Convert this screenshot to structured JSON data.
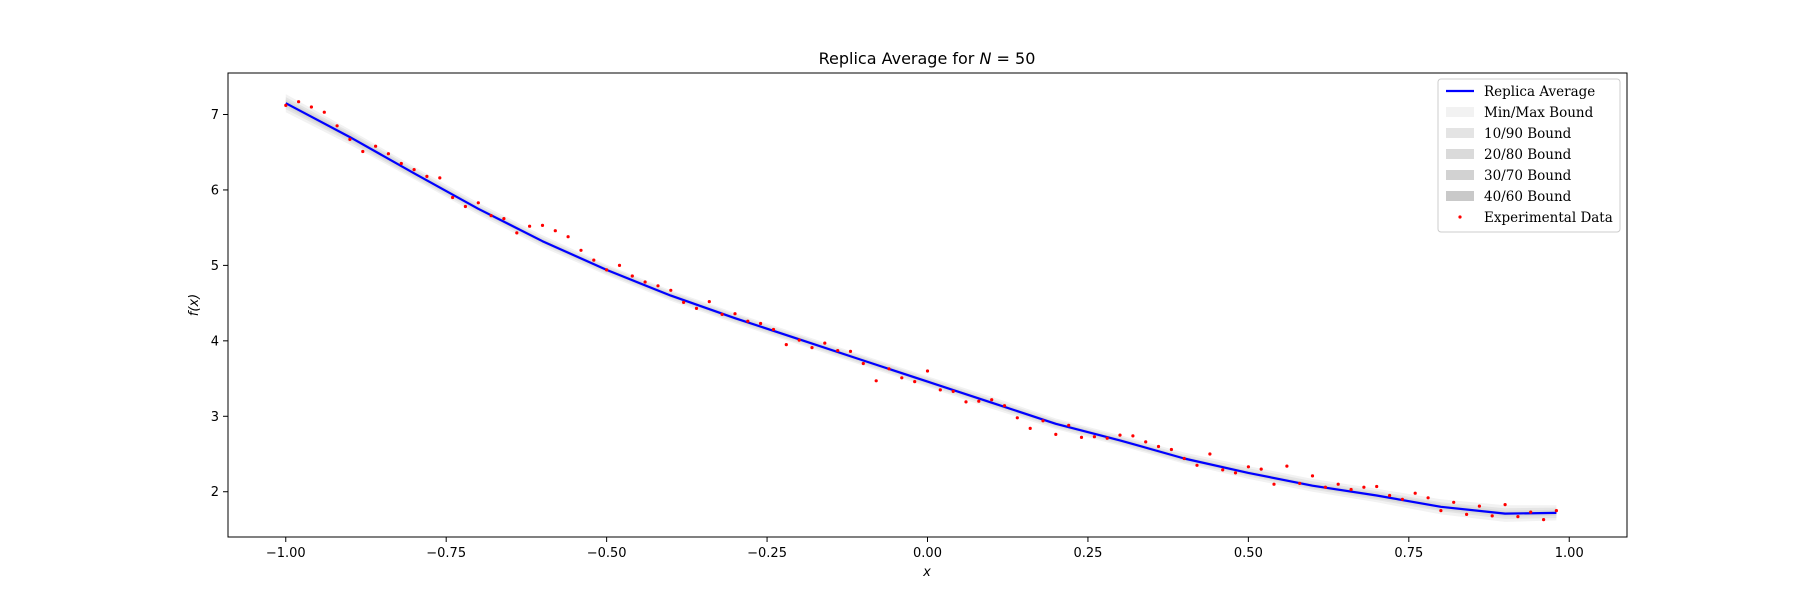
{
  "chart_data": {
    "type": "line",
    "title": "Replica Average for N = 50",
    "title_parts": {
      "prefix": "Replica Average for ",
      "var": "N",
      "suffix": " = 50"
    },
    "xlabel": "x",
    "ylabel": "f(x)",
    "xlim": [
      -1.09,
      1.09
    ],
    "ylim": [
      1.4,
      7.55
    ],
    "x_ticks": [
      -1.0,
      -0.75,
      -0.5,
      -0.25,
      0.0,
      0.25,
      0.5,
      0.75,
      1.0
    ],
    "x_tick_labels": [
      "−1.00",
      "−0.75",
      "−0.50",
      "−0.25",
      "0.00",
      "0.25",
      "0.50",
      "0.75",
      "1.00"
    ],
    "y_ticks": [
      2,
      3,
      4,
      5,
      6,
      7
    ],
    "y_tick_labels": [
      "2",
      "3",
      "4",
      "5",
      "6",
      "7"
    ],
    "grid": false,
    "legend_position": "top-right",
    "legend": [
      {
        "label": "Replica Average",
        "kind": "line"
      },
      {
        "label": "Min/Max Bound",
        "kind": "band"
      },
      {
        "label": "10/90 Bound",
        "kind": "band"
      },
      {
        "label": "20/80 Bound",
        "kind": "band"
      },
      {
        "label": "30/70 Bound",
        "kind": "band"
      },
      {
        "label": "40/60 Bound",
        "kind": "band"
      },
      {
        "label": "Experimental Data",
        "kind": "point"
      }
    ],
    "colors": {
      "line": "#0000ff",
      "points": "#ff0000",
      "band_minmax": "#f2f2f2",
      "band_10_90": "#e4e4e4",
      "band_20_80": "#dadada",
      "band_30_70": "#d2d2d2",
      "band_40_60": "#c9c9c9"
    },
    "series": [
      {
        "name": "Replica Average",
        "x": [
          -1.0,
          -0.9,
          -0.8,
          -0.7,
          -0.6,
          -0.5,
          -0.4,
          -0.3,
          -0.2,
          -0.1,
          0.0,
          0.1,
          0.2,
          0.3,
          0.4,
          0.5,
          0.6,
          0.7,
          0.8,
          0.9,
          0.98
        ],
        "y": [
          7.15,
          6.7,
          6.22,
          5.75,
          5.32,
          4.94,
          4.6,
          4.3,
          4.02,
          3.74,
          3.46,
          3.18,
          2.9,
          2.68,
          2.44,
          2.25,
          2.08,
          1.95,
          1.8,
          1.71,
          1.72
        ],
        "bands": {
          "minmax": {
            "lower": [
              7.03,
              6.6,
              6.14,
              5.67,
              5.24,
              4.87,
              4.53,
              4.23,
              3.95,
              3.67,
              3.39,
              3.1,
              2.83,
              2.61,
              2.37,
              2.17,
              2.0,
              1.86,
              1.7,
              1.6,
              1.62
            ],
            "upper": [
              7.27,
              6.8,
              6.31,
              5.83,
              5.4,
              5.01,
              4.67,
              4.37,
              4.09,
              3.81,
              3.53,
              3.26,
              2.97,
              2.75,
              2.52,
              2.34,
              2.17,
              2.04,
              1.9,
              1.82,
              1.82
            ]
          },
          "p10_90": {
            "lower": [
              7.07,
              6.63,
              6.16,
              5.7,
              5.27,
              4.89,
              4.55,
              4.25,
              3.97,
              3.69,
              3.41,
              3.13,
              2.85,
              2.63,
              2.39,
              2.2,
              2.03,
              1.89,
              1.74,
              1.64,
              1.65
            ],
            "upper": [
              7.23,
              6.77,
              6.28,
              5.8,
              5.37,
              4.99,
              4.65,
              4.35,
              4.07,
              3.79,
              3.51,
              3.23,
              2.95,
              2.73,
              2.49,
              2.31,
              2.14,
              2.01,
              1.86,
              1.78,
              1.79
            ]
          },
          "p20_80": {
            "lower": [
              7.1,
              6.65,
              6.18,
              5.72,
              5.29,
              4.91,
              4.57,
              4.27,
              3.99,
              3.71,
              3.43,
              3.15,
              2.87,
              2.65,
              2.41,
              2.22,
              2.05,
              1.91,
              1.76,
              1.67,
              1.68
            ],
            "upper": [
              7.2,
              6.75,
              6.26,
              5.78,
              5.35,
              4.97,
              4.63,
              4.33,
              4.05,
              3.77,
              3.49,
              3.21,
              2.93,
              2.71,
              2.47,
              2.28,
              2.11,
              1.99,
              1.84,
              1.75,
              1.76
            ]
          },
          "p30_70": {
            "lower": [
              7.12,
              6.67,
              6.2,
              5.73,
              5.3,
              4.92,
              4.58,
              4.28,
              4.0,
              3.72,
              3.44,
              3.16,
              2.88,
              2.66,
              2.42,
              2.23,
              2.06,
              1.93,
              1.78,
              1.69,
              1.7
            ],
            "upper": [
              7.18,
              6.73,
              6.24,
              5.77,
              5.34,
              4.96,
              4.62,
              4.32,
              4.04,
              3.76,
              3.48,
              3.2,
              2.92,
              2.7,
              2.46,
              2.27,
              2.1,
              1.97,
              1.82,
              1.73,
              1.74
            ]
          },
          "p40_60": {
            "lower": [
              7.14,
              6.69,
              6.21,
              5.74,
              5.31,
              4.93,
              4.59,
              4.29,
              4.01,
              3.73,
              3.45,
              3.17,
              2.89,
              2.67,
              2.43,
              2.24,
              2.07,
              1.94,
              1.79,
              1.7,
              1.71
            ],
            "upper": [
              7.16,
              6.71,
              6.23,
              5.76,
              5.33,
              4.95,
              4.61,
              4.31,
              4.03,
              3.75,
              3.47,
              3.19,
              2.91,
              2.69,
              2.45,
              2.26,
              2.09,
              1.96,
              1.81,
              1.72,
              1.73
            ]
          }
        }
      },
      {
        "name": "Experimental Data",
        "type": "scatter",
        "x": [
          -1.0,
          -0.98,
          -0.96,
          -0.94,
          -0.92,
          -0.9,
          -0.88,
          -0.86,
          -0.84,
          -0.82,
          -0.8,
          -0.78,
          -0.76,
          -0.74,
          -0.72,
          -0.7,
          -0.68,
          -0.66,
          -0.64,
          -0.62,
          -0.6,
          -0.58,
          -0.56,
          -0.54,
          -0.52,
          -0.5,
          -0.48,
          -0.46,
          -0.44,
          -0.42,
          -0.4,
          -0.38,
          -0.36,
          -0.34,
          -0.32,
          -0.3,
          -0.28,
          -0.26,
          -0.24,
          -0.22,
          -0.2,
          -0.18,
          -0.16,
          -0.14,
          -0.12,
          -0.1,
          -0.08,
          -0.06,
          -0.04,
          -0.02,
          0.0,
          0.02,
          0.04,
          0.06,
          0.08,
          0.1,
          0.12,
          0.14,
          0.16,
          0.18,
          0.2,
          0.22,
          0.24,
          0.26,
          0.28,
          0.3,
          0.32,
          0.34,
          0.36,
          0.38,
          0.4,
          0.42,
          0.44,
          0.46,
          0.48,
          0.5,
          0.52,
          0.54,
          0.56,
          0.58,
          0.6,
          0.62,
          0.64,
          0.66,
          0.68,
          0.7,
          0.72,
          0.74,
          0.76,
          0.78,
          0.8,
          0.82,
          0.84,
          0.86,
          0.88,
          0.9,
          0.92,
          0.94,
          0.96,
          0.98
        ],
        "y": [
          7.12,
          7.17,
          7.1,
          7.03,
          6.85,
          6.67,
          6.51,
          6.58,
          6.48,
          6.35,
          6.27,
          6.18,
          6.16,
          5.9,
          5.78,
          5.83,
          5.66,
          5.62,
          5.43,
          5.52,
          5.53,
          5.46,
          5.38,
          5.2,
          5.07,
          4.94,
          5.0,
          4.86,
          4.78,
          4.73,
          4.67,
          4.51,
          4.43,
          4.52,
          4.35,
          4.36,
          4.26,
          4.23,
          4.15,
          3.95,
          4.01,
          3.91,
          3.97,
          3.87,
          3.86,
          3.7,
          3.47,
          3.63,
          3.51,
          3.46,
          3.6,
          3.35,
          3.33,
          3.19,
          3.2,
          3.22,
          3.14,
          2.98,
          2.84,
          2.94,
          2.76,
          2.88,
          2.72,
          2.73,
          2.71,
          2.75,
          2.74,
          2.66,
          2.6,
          2.56,
          2.44,
          2.35,
          2.5,
          2.29,
          2.25,
          2.33,
          2.3,
          2.1,
          2.34,
          2.11,
          2.21,
          2.06,
          2.1,
          2.03,
          2.06,
          2.07,
          1.95,
          1.9,
          1.98,
          1.92,
          1.75,
          1.86,
          1.7,
          1.81,
          1.68,
          1.83,
          1.67,
          1.73,
          1.63,
          1.75
        ]
      }
    ]
  }
}
